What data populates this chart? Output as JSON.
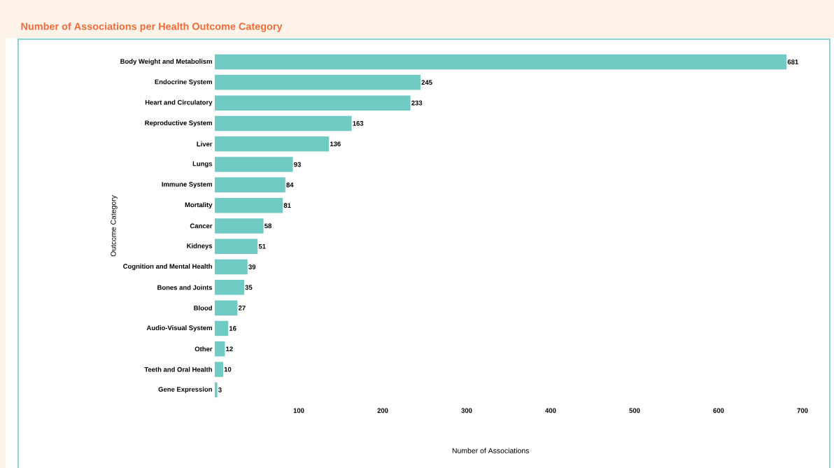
{
  "chart_data": {
    "type": "bar",
    "orientation": "horizontal",
    "title": "Number of Associations per Health Outcome Category",
    "xlabel": "Number of Associations",
    "ylabel": "Outcome Category",
    "categories": [
      "Body Weight and Metabolism",
      "Endocrine System",
      "Heart and Circulatory",
      "Reproductive System",
      "Liver",
      "Lungs",
      "Immune System",
      "Mortality",
      "Cancer",
      "Kidneys",
      "Cognition and Mental Health",
      "Bones and Joints",
      "Blood",
      "Audio-Visual System",
      "Other",
      "Teeth and Oral Health",
      "Gene Expression"
    ],
    "values": [
      681,
      245,
      233,
      163,
      136,
      93,
      84,
      81,
      58,
      51,
      39,
      35,
      27,
      16,
      12,
      10,
      3
    ],
    "color": "#70cbc4",
    "data_labels": true,
    "grid": false,
    "xlim": [
      0,
      730
    ],
    "xticks": [
      100,
      200,
      300,
      400,
      500,
      600,
      700
    ]
  }
}
